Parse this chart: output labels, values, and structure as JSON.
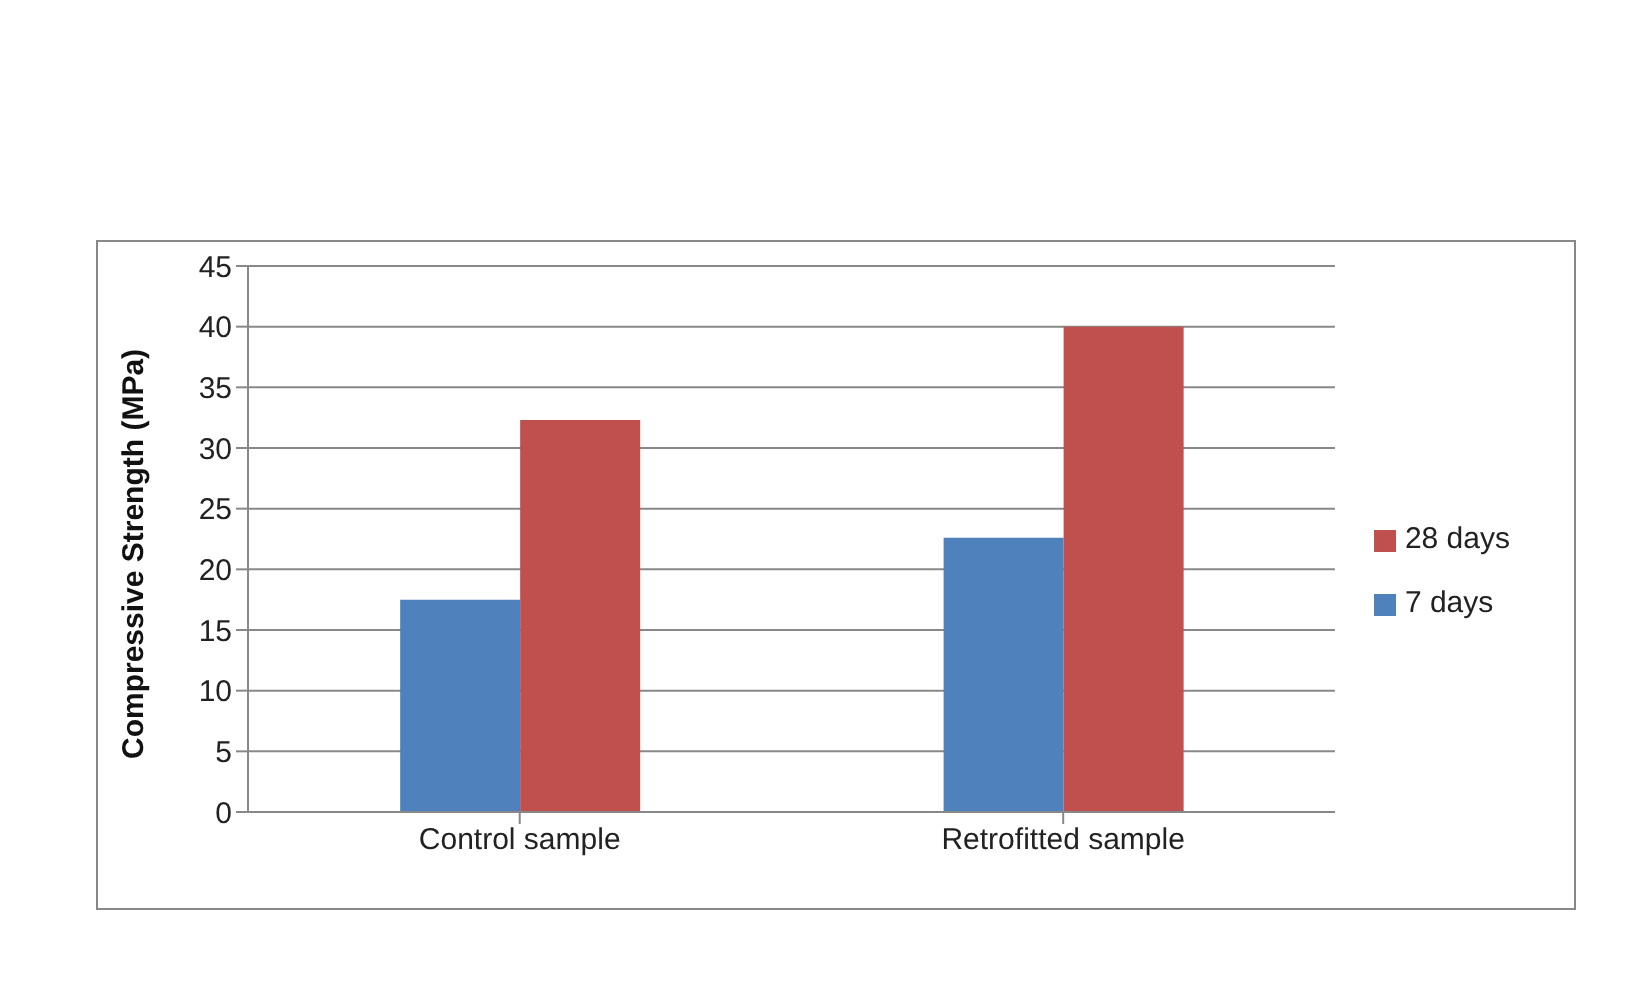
{
  "chart_data": {
    "type": "bar",
    "ylabel": "Compressive Strength (MPa)",
    "categories": [
      "Control sample",
      "Retrofitted sample"
    ],
    "series": [
      {
        "name": "7 days",
        "color": "#4f81bd",
        "values": [
          17.5,
          22.6
        ]
      },
      {
        "name": "28 days",
        "color": "#c0504d",
        "values": [
          32.3,
          40.0
        ]
      }
    ],
    "ylim": [
      0,
      45
    ],
    "yticks": [
      0,
      5,
      10,
      15,
      20,
      25,
      30,
      35,
      40,
      45
    ],
    "grid": "y",
    "legend": "right"
  }
}
